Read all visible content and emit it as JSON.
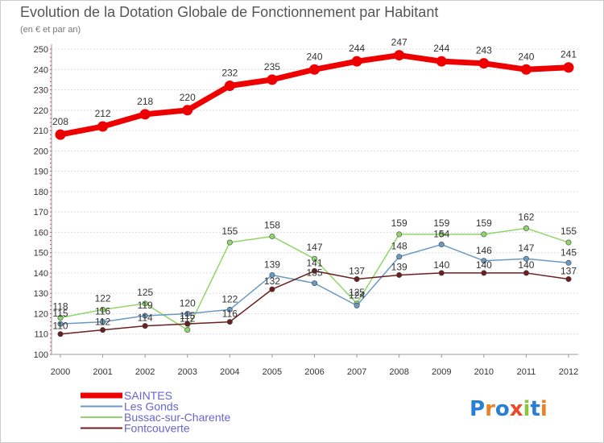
{
  "chart_data": {
    "type": "line",
    "title": "Evolution de la Dotation Globale de Fonctionnement par Habitant",
    "subtitle": "(en € et par an)",
    "xlabel": "",
    "ylabel": "",
    "ylim": [
      100,
      250
    ],
    "yticks": [
      100,
      110,
      120,
      130,
      140,
      150,
      160,
      170,
      180,
      190,
      200,
      210,
      220,
      230,
      240,
      250
    ],
    "categories": [
      "2000",
      "2001",
      "2002",
      "2003",
      "2004",
      "2005",
      "2006",
      "2007",
      "2008",
      "2009",
      "2010",
      "2011",
      "2012"
    ],
    "grid": "horizontal",
    "legend_position": "bottom-left",
    "series": [
      {
        "name": "SAINTES",
        "color": "#ee0000",
        "values": [
          208,
          212,
          218,
          220,
          232,
          235,
          240,
          244,
          247,
          244,
          243,
          240,
          241
        ],
        "labels": [
          "208",
          "212",
          "218",
          "220",
          "232",
          "235",
          "240",
          "244",
          "247",
          "244",
          "243",
          "240",
          "241"
        ]
      },
      {
        "name": "Les Gonds",
        "color": "#6a9ac4",
        "values": [
          115,
          116,
          119,
          120,
          122,
          139,
          135,
          124,
          148,
          154,
          146,
          147,
          145
        ],
        "labels": [
          "115",
          "116",
          "119",
          "120",
          "122",
          "139",
          "135",
          "124",
          "148",
          "154",
          "146",
          "147",
          "145"
        ]
      },
      {
        "name": "Bussac-sur-Charente",
        "color": "#8fd66a",
        "values": [
          118,
          122,
          125,
          112,
          155,
          158,
          147,
          125,
          159,
          159,
          159,
          162,
          155
        ],
        "labels": [
          "118",
          "122",
          "125",
          "112",
          "155",
          "158",
          "147",
          "125",
          "159",
          "159",
          "159",
          "162",
          "155"
        ]
      },
      {
        "name": "Fontcouverte",
        "color": "#6b1f1f",
        "values": [
          110,
          112,
          114,
          115,
          116,
          132,
          141,
          137,
          139,
          140,
          140,
          140,
          137
        ],
        "labels": [
          "110",
          "112",
          "114",
          "115",
          "116",
          "132",
          "141",
          "137",
          "139",
          "140",
          "140",
          "140",
          "137"
        ]
      }
    ]
  },
  "brand": {
    "text": "Proxiti",
    "letters": [
      "P",
      "r",
      "o",
      "x",
      "i",
      "t",
      "i"
    ],
    "colors": [
      "#2a7fd4",
      "#e8832a",
      "#2a7fd4",
      "#e84a2a",
      "#8bc53f",
      "#2a7fd4",
      "#e8832a"
    ]
  },
  "colors": {
    "axis": "#999999",
    "grid": "#dddddd",
    "text": "#333333",
    "title": "#555555",
    "subtitle": "#777777",
    "legend_text": "#6666cc",
    "frame": "#cccccc"
  }
}
